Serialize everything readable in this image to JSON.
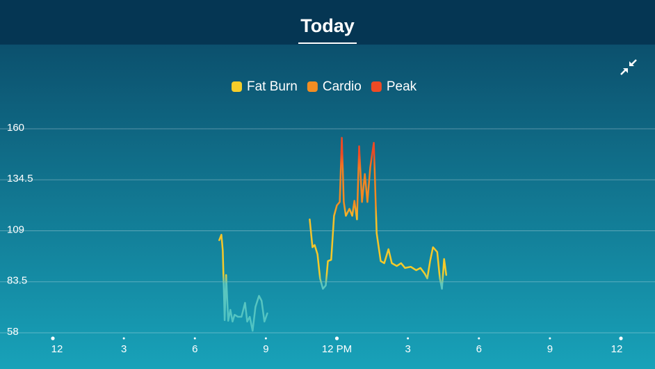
{
  "chart_data": {
    "type": "line",
    "title": "Today",
    "legend": [
      {
        "name": "Fat Burn",
        "color": "#f5cd2a"
      },
      {
        "name": "Cardio",
        "color": "#f28d22"
      },
      {
        "name": "Peak",
        "color": "#ee4a24"
      }
    ],
    "x": [
      7.03,
      7.12,
      7.18,
      7.26,
      7.32,
      7.41,
      7.5,
      7.59,
      7.68,
      7.82,
      7.97,
      8.12,
      8.21,
      8.32,
      8.44,
      8.56,
      8.71,
      8.82,
      8.94,
      9.06,
      null,
      10.85,
      10.97,
      11.06,
      11.18,
      11.29,
      11.41,
      11.53,
      11.62,
      11.76,
      11.88,
      12,
      12.12,
      12.21,
      12.29,
      12.38,
      12.53,
      12.65,
      12.74,
      12.85,
      12.94,
      13.06,
      13.18,
      13.29,
      13.41,
      13.56,
      13.68,
      13.85,
      14,
      14.18,
      14.32,
      14.53,
      14.71,
      14.88,
      15.12,
      15.35,
      15.53,
      15.71,
      15.82,
      15.94,
      16.06,
      16.24,
      16.35,
      16.44,
      16.53,
      16.62
    ],
    "values": [
      104.3,
      107,
      99,
      64.3,
      86.9,
      64,
      69.5,
      63.6,
      67,
      66,
      66,
      73,
      63.6,
      66,
      59,
      71,
      76.5,
      74,
      63.6,
      67.7,
      null,
      114.7,
      100.8,
      101.9,
      97.3,
      85.2,
      80,
      81.7,
      93.9,
      94.5,
      116.5,
      121.7,
      123.4,
      155.5,
      123.4,
      116.5,
      120,
      116.5,
      124,
      114.7,
      151.3,
      123.4,
      137.4,
      123.4,
      140.8,
      153,
      107.8,
      93.9,
      92.8,
      99.8,
      92.8,
      91.4,
      92.8,
      90.4,
      91,
      89.3,
      90.4,
      87.6,
      85.2,
      93.9,
      100.8,
      98.4,
      85.2,
      80,
      94.9,
      86.9
    ],
    "xlim": [
      0,
      24
    ],
    "xticks": [
      {
        "value": 0,
        "label": "12"
      },
      3,
      6,
      9,
      {
        "value": 12,
        "label": "12 PM"
      },
      {
        "value": 15,
        "label": "3"
      },
      {
        "value": 18,
        "label": "6"
      },
      {
        "value": 21,
        "label": "9"
      },
      {
        "value": 24,
        "label": "12"
      }
    ],
    "ylim": [
      58,
      160
    ],
    "yticks": [
      58,
      83.5,
      109,
      134.5,
      160
    ],
    "grid": true
  }
}
